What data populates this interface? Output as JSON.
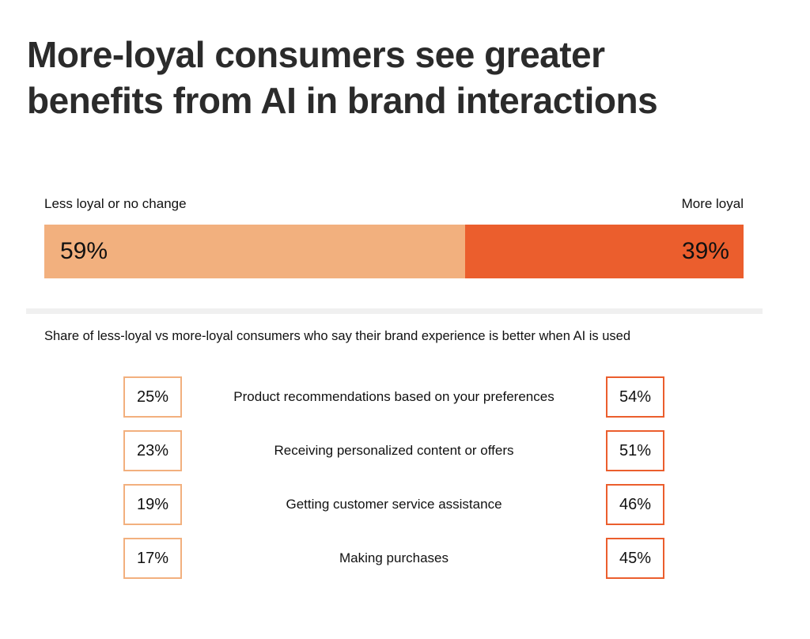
{
  "title": "More-loyal consumers see greater benefits from AI in brand interactions",
  "colors": {
    "less_loyal": "#f2b07e",
    "more_loyal": "#eb5e2d"
  },
  "chart_data": [
    {
      "type": "bar",
      "orientation": "horizontal-stacked",
      "title": "",
      "categories": [
        "Less loyal or no change",
        "More loyal"
      ],
      "values": [
        59,
        39
      ],
      "value_labels": [
        "59%",
        "39%"
      ],
      "unit": "%"
    },
    {
      "type": "table",
      "title": "Share of less-loyal vs more-loyal consumers who say their brand experience is better when AI is used",
      "series": [
        {
          "name": "Less loyal or no change",
          "values": [
            25,
            23,
            19,
            17
          ]
        },
        {
          "name": "More loyal",
          "values": [
            54,
            51,
            46,
            45
          ]
        }
      ],
      "rows": [
        {
          "label": "Product recommendations based on your preferences",
          "less": "25%",
          "more": "54%"
        },
        {
          "label": "Receiving personalized content or offers",
          "less": "23%",
          "more": "51%"
        },
        {
          "label": "Getting customer service assistance",
          "less": "19%",
          "more": "46%"
        },
        {
          "label": "Making purchases",
          "less": "17%",
          "more": "45%"
        }
      ]
    }
  ]
}
